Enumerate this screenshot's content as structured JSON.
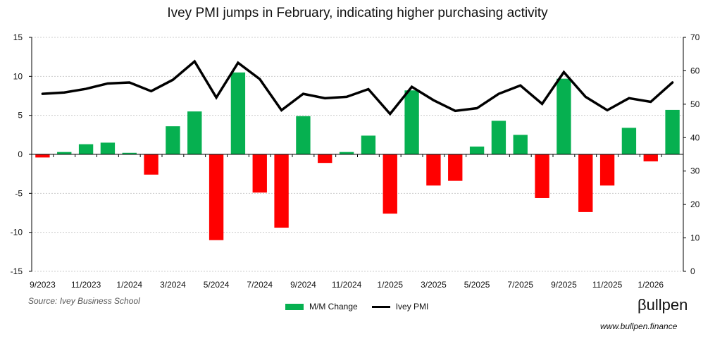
{
  "title": "Ivey PMI jumps in February, indicating higher purchasing activity",
  "source": "Source: Ivey Business School",
  "logo": "βullpen",
  "url": "www.bullpen.finance",
  "colors": {
    "positive": "#06b050",
    "negative": "#ff0000",
    "line": "#000000"
  },
  "chart_data": {
    "type": "bar+line",
    "title": "Ivey PMI jumps in February, indicating higher purchasing activity",
    "categories": [
      "9/2023",
      "10/2023",
      "11/2023",
      "12/2023",
      "1/2024",
      "2/2024",
      "3/2024",
      "4/2024",
      "5/2024",
      "6/2024",
      "7/2024",
      "8/2024",
      "9/2024",
      "10/2024",
      "11/2024",
      "12/2024",
      "1/2025",
      "2/2025",
      "3/2025",
      "4/2025",
      "5/2025",
      "6/2025",
      "7/2025",
      "8/2025",
      "9/2025",
      "10/2025",
      "11/2025",
      "12/2025",
      "1/2026",
      "2/2026"
    ],
    "x_tick_labels": [
      "9/2023",
      "11/2023",
      "1/2024",
      "3/2024",
      "5/2024",
      "7/2024",
      "9/2024",
      "11/2024",
      "1/2025",
      "3/2025",
      "5/2025",
      "7/2025",
      "9/2025",
      "11/2025",
      "1/2026"
    ],
    "series": [
      {
        "name": "M/M Change",
        "type": "bar",
        "axis": "left",
        "values": [
          -0.4,
          0.3,
          1.3,
          1.5,
          0.2,
          -2.6,
          3.6,
          5.5,
          -11.0,
          10.5,
          -4.9,
          -9.4,
          4.9,
          -1.1,
          0.3,
          2.4,
          -7.6,
          8.2,
          -4.0,
          -3.4,
          1.0,
          4.3,
          2.5,
          -5.6,
          9.7,
          -7.4,
          -4.0,
          3.4,
          -0.9,
          5.7
        ]
      },
      {
        "name": "Ivey PMI",
        "type": "line",
        "axis": "right",
        "values": [
          53.1,
          53.5,
          54.6,
          56.2,
          56.5,
          53.9,
          57.3,
          62.8,
          52.0,
          62.4,
          57.5,
          48.2,
          53.1,
          51.8,
          52.2,
          54.5,
          47.1,
          55.2,
          51.2,
          48.0,
          48.8,
          53.1,
          55.6,
          50.1,
          59.6,
          52.2,
          48.2,
          51.8,
          50.7,
          56.5
        ]
      }
    ],
    "left_axis": {
      "range": [
        -15,
        15
      ],
      "ticks": [
        "15",
        "10",
        "5",
        "0",
        "-5",
        "-10",
        "-15"
      ]
    },
    "right_axis": {
      "range": [
        0,
        70
      ],
      "ticks": [
        "70",
        "60",
        "50",
        "40",
        "30",
        "20",
        "10",
        "0"
      ]
    },
    "grid": true,
    "legend": "bottom"
  }
}
